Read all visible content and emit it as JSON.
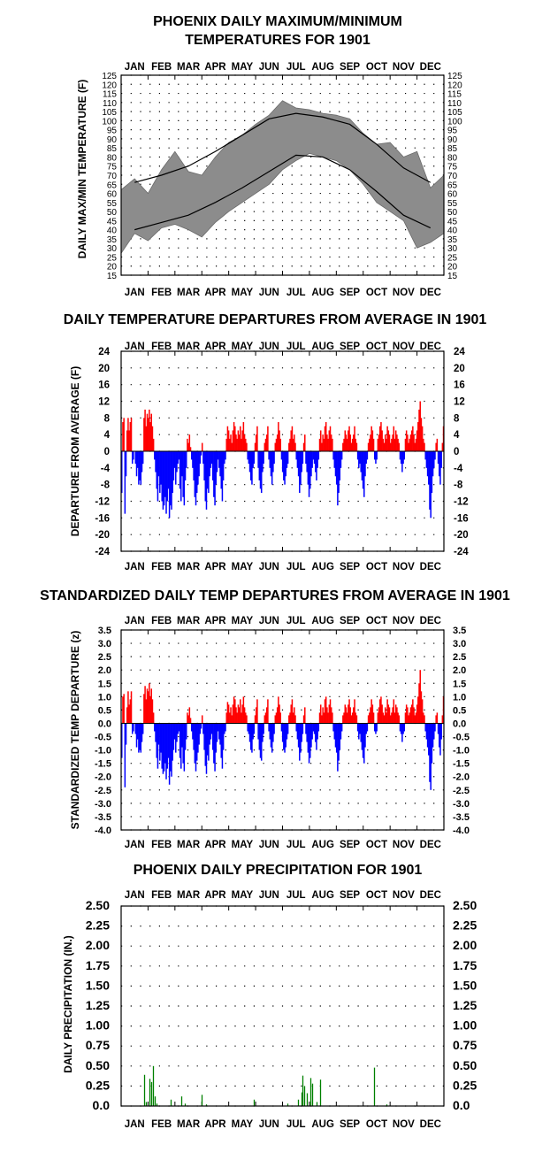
{
  "months": [
    "JAN",
    "FEB",
    "MAR",
    "APR",
    "MAY",
    "JUN",
    "JUL",
    "AUG",
    "SEP",
    "OCT",
    "NOV",
    "DEC"
  ],
  "chart_data": [
    {
      "type": "area",
      "title_line1": "PHOENIX DAILY MAXIMUM/MINIMUM",
      "title_line2": "TEMPERATURES FOR 1901",
      "ylabel": "DAILY MAX/MIN TEMPERATURE (F)",
      "ylim": [
        15,
        125
      ],
      "yticks": [
        15,
        20,
        25,
        30,
        35,
        40,
        45,
        50,
        55,
        60,
        65,
        70,
        75,
        80,
        85,
        90,
        95,
        100,
        105,
        110,
        115,
        120,
        125
      ],
      "grid": true,
      "series": [
        {
          "name": "",
          "kind": "normal-max-line",
          "x_month": [
            0.5,
            1.5,
            2.5,
            3.5,
            4.5,
            5.5,
            6.5,
            7.5,
            8.5,
            9.5,
            10.5,
            11.5
          ],
          "y": [
            66,
            70,
            75,
            83,
            92,
            101,
            104,
            102,
            98,
            87,
            74,
            66
          ]
        },
        {
          "name": "",
          "kind": "normal-min-line",
          "x_month": [
            0.5,
            1.5,
            2.5,
            3.5,
            4.5,
            5.5,
            6.5,
            7.5,
            8.5,
            9.5,
            10.5,
            11.5
          ],
          "y": [
            40,
            44,
            48,
            55,
            63,
            72,
            81,
            80,
            73,
            61,
            48,
            41
          ]
        },
        {
          "name": "",
          "kind": "daily-range-band",
          "x_month": [
            0.0,
            0.5,
            1.0,
            1.5,
            2.0,
            2.5,
            3.0,
            3.5,
            4.0,
            4.5,
            5.0,
            5.5,
            6.0,
            6.5,
            7.0,
            7.5,
            8.0,
            8.5,
            9.0,
            9.5,
            10.0,
            10.5,
            11.0,
            11.5,
            12.0
          ],
          "max": [
            62,
            68,
            60,
            73,
            83,
            72,
            70,
            80,
            88,
            92,
            98,
            103,
            111,
            107,
            106,
            104,
            103,
            101,
            93,
            87,
            88,
            80,
            83,
            63,
            70
          ],
          "min": [
            27,
            38,
            34,
            41,
            43,
            40,
            36,
            44,
            50,
            55,
            60,
            65,
            73,
            78,
            82,
            80,
            78,
            73,
            65,
            55,
            50,
            45,
            30,
            33,
            38
          ]
        }
      ]
    },
    {
      "type": "bar",
      "title": "DAILY TEMPERATURE DEPARTURES FROM AVERAGE IN 1901",
      "ylabel": "DEPARTURE FROM AVERAGE (F)",
      "ylim": [
        -24,
        24
      ],
      "yticks": [
        24,
        20,
        16,
        12,
        8,
        4,
        0,
        -4,
        -8,
        -12,
        -16,
        -20,
        -24
      ],
      "grid": true,
      "colors": {
        "positive": "#ff0000",
        "negative": "#0000ff"
      },
      "values": [
        -10,
        7,
        8,
        -15,
        -6,
        5,
        8,
        5,
        7,
        8,
        -3,
        -2,
        0,
        -3,
        -6,
        -4,
        -8,
        -7,
        -8,
        -5,
        -3,
        8,
        10,
        6,
        9,
        8,
        10,
        7,
        9,
        6,
        3,
        -2,
        -5,
        -9,
        -12,
        -6,
        -10,
        -8,
        -12,
        -14,
        -13,
        -11,
        -15,
        -12,
        -9,
        -16,
        -13,
        -14,
        -10,
        -7,
        -4,
        -8,
        -5,
        -3,
        -2,
        -9,
        -12,
        -6,
        -11,
        -13,
        -7,
        -4,
        3,
        2,
        4,
        1,
        -2,
        -4,
        -7,
        -11,
        -13,
        -10,
        -8,
        -6,
        -3,
        -1,
        2,
        -3,
        -7,
        -12,
        -14,
        -9,
        -10,
        -6,
        -4,
        -3,
        -7,
        -11,
        -13,
        -8,
        -5,
        -2,
        -4,
        -6,
        -9,
        -12,
        -7,
        -3,
        -2,
        3,
        6,
        5,
        3,
        4,
        2,
        5,
        7,
        6,
        4,
        3,
        5,
        4,
        6,
        3,
        5,
        7,
        4,
        3,
        2,
        -2,
        -3,
        -5,
        -7,
        -8,
        -4,
        -3,
        2,
        4,
        6,
        -4,
        -7,
        -9,
        -10,
        -5,
        -3,
        2,
        3,
        4,
        6,
        -2,
        -4,
        -6,
        -8,
        -5,
        -3,
        2,
        3,
        4,
        7,
        5,
        3,
        -2,
        -5,
        -7,
        -8,
        -6,
        -4,
        -3,
        2,
        3,
        5,
        6,
        3,
        4,
        2,
        -2,
        -4,
        -6,
        -10,
        -8,
        -5,
        -3,
        2,
        4,
        -3,
        -5,
        -8,
        -11,
        -9,
        -6,
        -4,
        -2,
        -3,
        -5,
        -7,
        -4,
        -2,
        3,
        5,
        2,
        4,
        3,
        6,
        7,
        4,
        3,
        5,
        6,
        4,
        3,
        -2,
        -4,
        -6,
        -8,
        -13,
        -10,
        -7,
        -4,
        -2,
        2,
        3,
        5,
        4,
        3,
        5,
        6,
        4,
        2,
        3,
        4,
        6,
        3,
        2,
        -2,
        -4,
        -3,
        -5,
        -7,
        -9,
        -11,
        -6,
        -3,
        -2,
        2,
        3,
        4,
        6,
        5,
        3,
        -2,
        -3,
        -2,
        3,
        4,
        6,
        7,
        5,
        3,
        2,
        4,
        3,
        6,
        5,
        4,
        2,
        3,
        4,
        6,
        3,
        5,
        4,
        3,
        2,
        -2,
        -3,
        -5,
        -3,
        -2,
        3,
        5,
        4,
        2,
        3,
        4,
        5,
        6,
        4,
        2,
        3,
        5,
        7,
        10,
        12,
        8,
        6,
        3,
        2,
        -2,
        -4,
        -6,
        -8,
        -14,
        -16,
        -10,
        -6,
        -4,
        -2,
        2,
        3,
        -3,
        -6,
        -8,
        -4,
        2,
        6
      ]
    },
    {
      "type": "bar",
      "title": "STANDARDIZED DAILY TEMP DEPARTURES FROM AVERAGE IN 1901",
      "ylabel": "STANDARDIZED TEMP DEPARTURE (z)",
      "ylim": [
        -4.0,
        3.5
      ],
      "yticks": [
        "3.5",
        "3.0",
        "2.5",
        "2.0",
        "1.5",
        "1.0",
        "0.5",
        "0.0",
        "-0.5",
        "-1.0",
        "-1.5",
        "-2.0",
        "-2.5",
        "-3.0",
        "-3.5",
        "-4.0"
      ],
      "grid": true,
      "colors": {
        "positive": "#ff0000",
        "negative": "#0000ff"
      },
      "values": [
        -1.3,
        1.0,
        1.1,
        -2.4,
        -0.8,
        0.6,
        1.2,
        0.7,
        0.9,
        1.2,
        -0.4,
        -0.3,
        0,
        -0.4,
        -0.9,
        -0.6,
        -1.1,
        -1.0,
        -1.1,
        -0.7,
        -0.4,
        1.1,
        1.4,
        0.9,
        1.3,
        1.2,
        1.5,
        1.0,
        1.3,
        0.9,
        0.4,
        -0.3,
        -0.7,
        -1.3,
        -1.7,
        -0.8,
        -1.4,
        -1.1,
        -1.7,
        -1.9,
        -1.8,
        -1.5,
        -2.1,
        -1.7,
        -1.3,
        -2.3,
        -1.8,
        -2.0,
        -1.4,
        -1.0,
        -0.6,
        -1.1,
        -0.7,
        -0.4,
        -0.3,
        -1.3,
        -1.7,
        -0.9,
        -1.5,
        -1.8,
        -1.0,
        -0.6,
        0.4,
        0.3,
        0.6,
        0.2,
        -0.3,
        -0.6,
        -1.0,
        -1.5,
        -1.8,
        -1.4,
        -1.1,
        -0.8,
        -0.4,
        -0.2,
        0.3,
        -0.4,
        -1.0,
        -1.6,
        -1.9,
        -1.2,
        -1.4,
        -0.8,
        -0.6,
        -0.4,
        -1.0,
        -1.5,
        -1.8,
        -1.1,
        -0.7,
        -0.3,
        -0.6,
        -0.8,
        -1.3,
        -1.7,
        -1.0,
        -0.4,
        -0.3,
        0.4,
        0.8,
        0.7,
        0.4,
        0.6,
        0.3,
        0.7,
        1.0,
        0.9,
        0.6,
        0.4,
        0.7,
        0.6,
        0.9,
        0.4,
        0.7,
        1.0,
        0.6,
        0.4,
        0.3,
        -0.3,
        -0.4,
        -0.7,
        -1.0,
        -1.1,
        -0.6,
        -0.4,
        0.3,
        0.6,
        0.9,
        -0.6,
        -1.0,
        -1.3,
        -1.4,
        -0.7,
        -0.4,
        0.3,
        0.4,
        0.6,
        0.9,
        -0.3,
        -0.6,
        -0.9,
        -1.1,
        -0.7,
        -0.4,
        0.3,
        0.4,
        0.6,
        1.0,
        0.7,
        0.4,
        -0.3,
        -0.7,
        -1.0,
        -1.1,
        -0.9,
        -0.6,
        -0.4,
        0.3,
        0.4,
        0.7,
        0.9,
        0.4,
        0.6,
        0.3,
        -0.3,
        -0.6,
        -0.9,
        -1.4,
        -1.1,
        -0.7,
        -0.4,
        0.3,
        0.6,
        -0.4,
        -0.7,
        -1.1,
        -1.5,
        -1.3,
        -0.9,
        -0.6,
        -0.3,
        -0.4,
        -0.7,
        -1.0,
        -0.6,
        -0.3,
        0.4,
        0.7,
        0.3,
        0.6,
        0.4,
        0.9,
        1.0,
        0.6,
        0.4,
        0.7,
        0.9,
        0.6,
        0.4,
        -0.3,
        -0.6,
        -0.9,
        -1.1,
        -1.8,
        -1.4,
        -1.0,
        -0.6,
        -0.3,
        0.3,
        0.4,
        0.7,
        0.6,
        0.4,
        0.7,
        0.9,
        0.6,
        0.3,
        0.4,
        0.6,
        0.9,
        0.4,
        0.3,
        -0.3,
        -0.6,
        -0.4,
        -0.7,
        -1.0,
        -1.3,
        -1.5,
        -0.9,
        -0.4,
        -0.3,
        0.3,
        0.4,
        0.6,
        0.9,
        0.7,
        0.4,
        -0.3,
        -0.4,
        -0.3,
        0.4,
        0.6,
        0.9,
        1.0,
        0.7,
        0.4,
        0.3,
        0.6,
        0.4,
        0.9,
        0.7,
        0.6,
        0.3,
        0.4,
        0.6,
        0.9,
        0.4,
        0.7,
        0.6,
        0.4,
        0.3,
        -0.3,
        -0.4,
        -0.7,
        -0.4,
        -0.3,
        0.4,
        0.7,
        0.6,
        0.3,
        0.4,
        0.6,
        0.7,
        0.9,
        0.6,
        0.3,
        0.4,
        0.7,
        1.0,
        1.5,
        2.0,
        1.2,
        0.9,
        0.4,
        0.3,
        -0.3,
        -0.6,
        -0.9,
        -1.2,
        -2.2,
        -2.5,
        -1.5,
        -0.9,
        -0.6,
        -0.3,
        0.3,
        0.4,
        -0.4,
        -0.9,
        -1.2,
        -0.6,
        0.3,
        1.0
      ]
    },
    {
      "type": "bar",
      "title": "PHOENIX DAILY PRECIPITATION FOR 1901",
      "ylabel": "DAILY PRECIPITATION (IN.)",
      "ylim": [
        0,
        2.5
      ],
      "yticks": [
        "2.50",
        "2.25",
        "2.00",
        "1.75",
        "1.50",
        "1.25",
        "1.00",
        "0.75",
        "0.50",
        "0.25",
        "0.0"
      ],
      "grid": true,
      "colors": {
        "bars": "#008000"
      },
      "events": [
        {
          "day": 26,
          "value": 0.39
        },
        {
          "day": 28,
          "value": 0.05
        },
        {
          "day": 32,
          "value": 0.34
        },
        {
          "day": 34,
          "value": 0.3
        },
        {
          "day": 36,
          "value": 0.5
        },
        {
          "day": 38,
          "value": 0.12
        },
        {
          "day": 40,
          "value": 0.03
        },
        {
          "day": 56,
          "value": 0.08
        },
        {
          "day": 68,
          "value": 0.12
        },
        {
          "day": 72,
          "value": 0.03
        },
        {
          "day": 91,
          "value": 0.14
        },
        {
          "day": 96,
          "value": 0.02
        },
        {
          "day": 150,
          "value": 0.08
        },
        {
          "day": 188,
          "value": 0.03
        },
        {
          "day": 200,
          "value": 0.08
        },
        {
          "day": 204,
          "value": 0.17
        },
        {
          "day": 205,
          "value": 0.38
        },
        {
          "day": 207,
          "value": 0.25
        },
        {
          "day": 210,
          "value": 0.16
        },
        {
          "day": 214,
          "value": 0.35
        },
        {
          "day": 216,
          "value": 0.28
        },
        {
          "day": 221,
          "value": 0.05
        },
        {
          "day": 225,
          "value": 0.33
        },
        {
          "day": 286,
          "value": 0.48
        },
        {
          "day": 300,
          "value": 0.02
        }
      ]
    }
  ]
}
